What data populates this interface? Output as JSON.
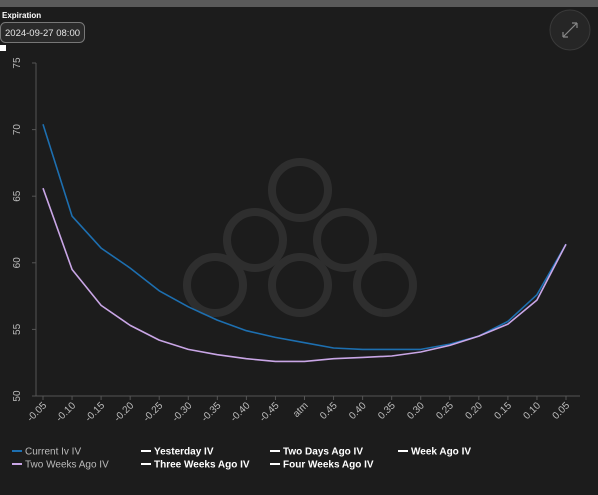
{
  "header": {
    "label": "Expiration",
    "expiration": "2024-09-27 08:00"
  },
  "chart_data": {
    "type": "line",
    "categories": [
      "-0.05",
      "-0.10",
      "-0.15",
      "-0.20",
      "-0.25",
      "-0.30",
      "-0.35",
      "-0.40",
      "-0.45",
      "atm",
      "0.45",
      "0.40",
      "0.35",
      "0.30",
      "0.25",
      "0.20",
      "0.15",
      "0.10",
      "0.05"
    ],
    "ylim": [
      50,
      75
    ],
    "yticks": [
      50,
      55,
      60,
      65,
      70,
      75
    ],
    "series": [
      {
        "name": "Current Iv IV",
        "color": "#1d6fb0",
        "values": [
          70.4,
          63.5,
          61.1,
          59.6,
          57.9,
          56.7,
          55.7,
          54.9,
          54.4,
          54.0,
          53.6,
          53.5,
          53.5,
          53.5,
          53.9,
          54.5,
          55.6,
          57.6,
          61.4
        ]
      },
      {
        "name": "Yesterday IV",
        "color": "#ffffff"
      },
      {
        "name": "Two Days Ago IV",
        "color": "#ffffff"
      },
      {
        "name": "Week Ago IV",
        "color": "#ffffff"
      },
      {
        "name": "Two Weeks Ago IV",
        "color": "#c9a6e6",
        "values": [
          65.6,
          59.5,
          56.8,
          55.3,
          54.2,
          53.5,
          53.1,
          52.8,
          52.6,
          52.6,
          52.8,
          52.9,
          53.0,
          53.3,
          53.8,
          54.5,
          55.4,
          57.2,
          61.4
        ]
      },
      {
        "name": "Three Weeks Ago IV",
        "color": "#ffffff"
      },
      {
        "name": "Four Weeks Ago IV",
        "color": "#ffffff"
      }
    ]
  }
}
